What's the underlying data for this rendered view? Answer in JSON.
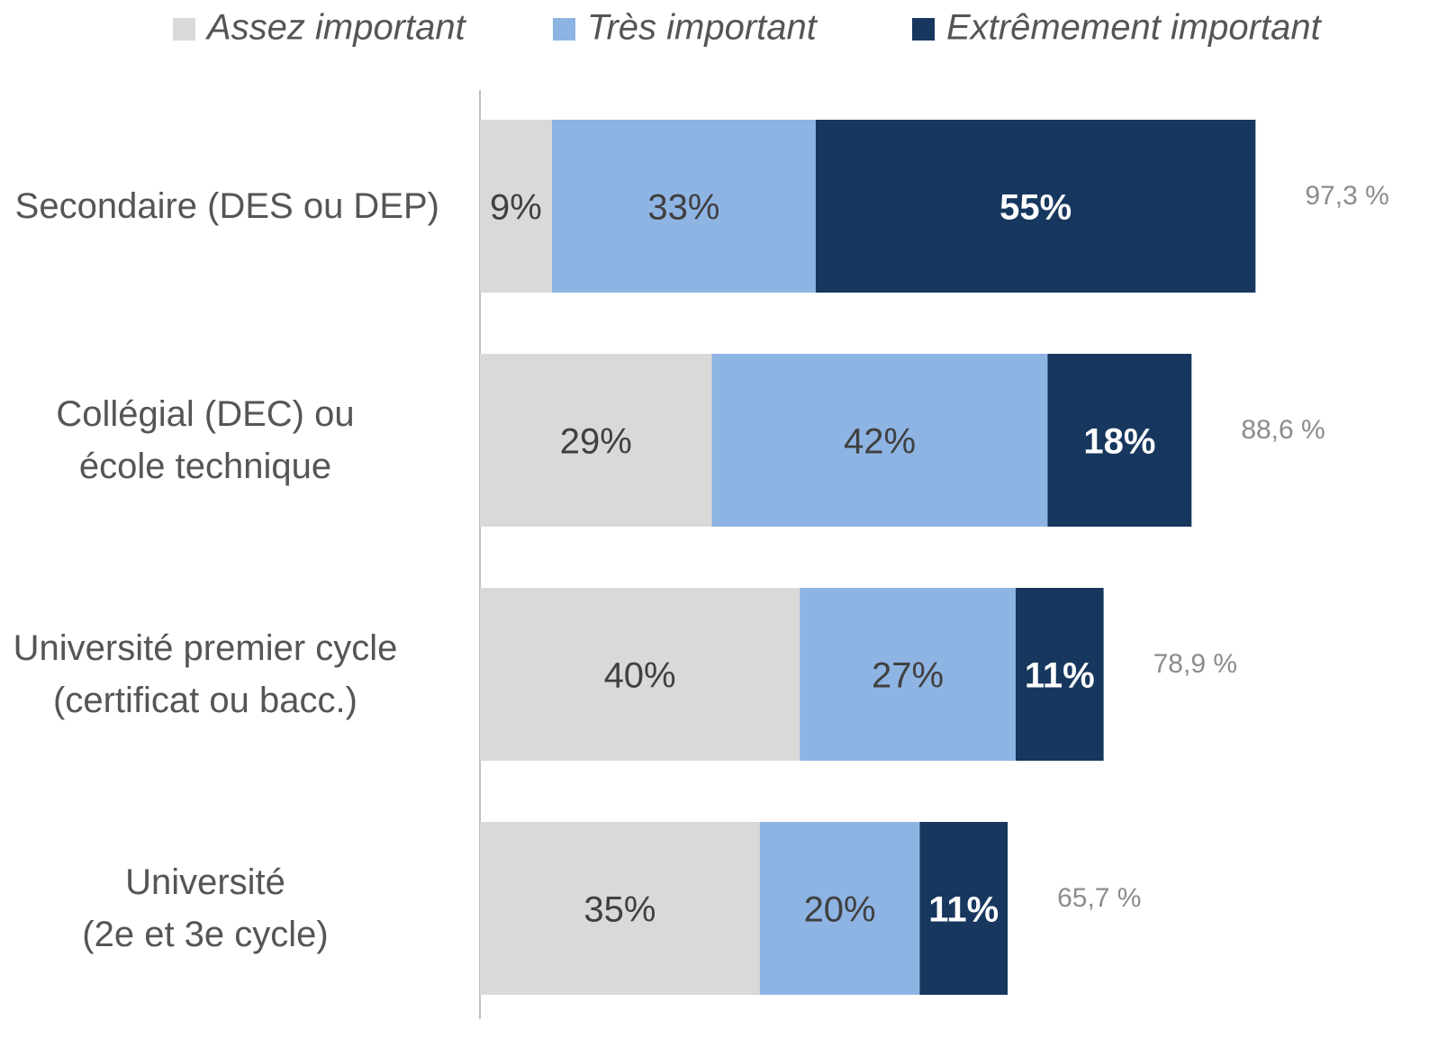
{
  "chart_data": {
    "type": "stacked-bar-horizontal",
    "categories": [
      "Secondaire (DES ou DEP)",
      "Collégial (DEC) ou\nécole technique",
      "Université premier cycle\n(certificat ou bacc.)",
      "Université\n(2e et 3e cycle)"
    ],
    "series": [
      {
        "name": "Assez important",
        "color": "#d9d9d9",
        "values": [
          9,
          29,
          40,
          35
        ],
        "value_labels": [
          "9%",
          "29%",
          "40%",
          "35%"
        ]
      },
      {
        "name": "Très important",
        "color": "#8eb4e3",
        "values": [
          33,
          42,
          27,
          20
        ],
        "value_labels": [
          "33%",
          "42%",
          "27%",
          "20%"
        ]
      },
      {
        "name": "Extrêmement important",
        "color": "#17375e",
        "values": [
          55,
          18,
          11,
          11
        ],
        "value_labels": [
          "55%",
          "18%",
          "11%",
          "11%"
        ]
      }
    ],
    "annotations": [
      "97,3 %",
      "88,6 %",
      "78,9 %",
      "65,7 %"
    ],
    "legend": "top"
  }
}
